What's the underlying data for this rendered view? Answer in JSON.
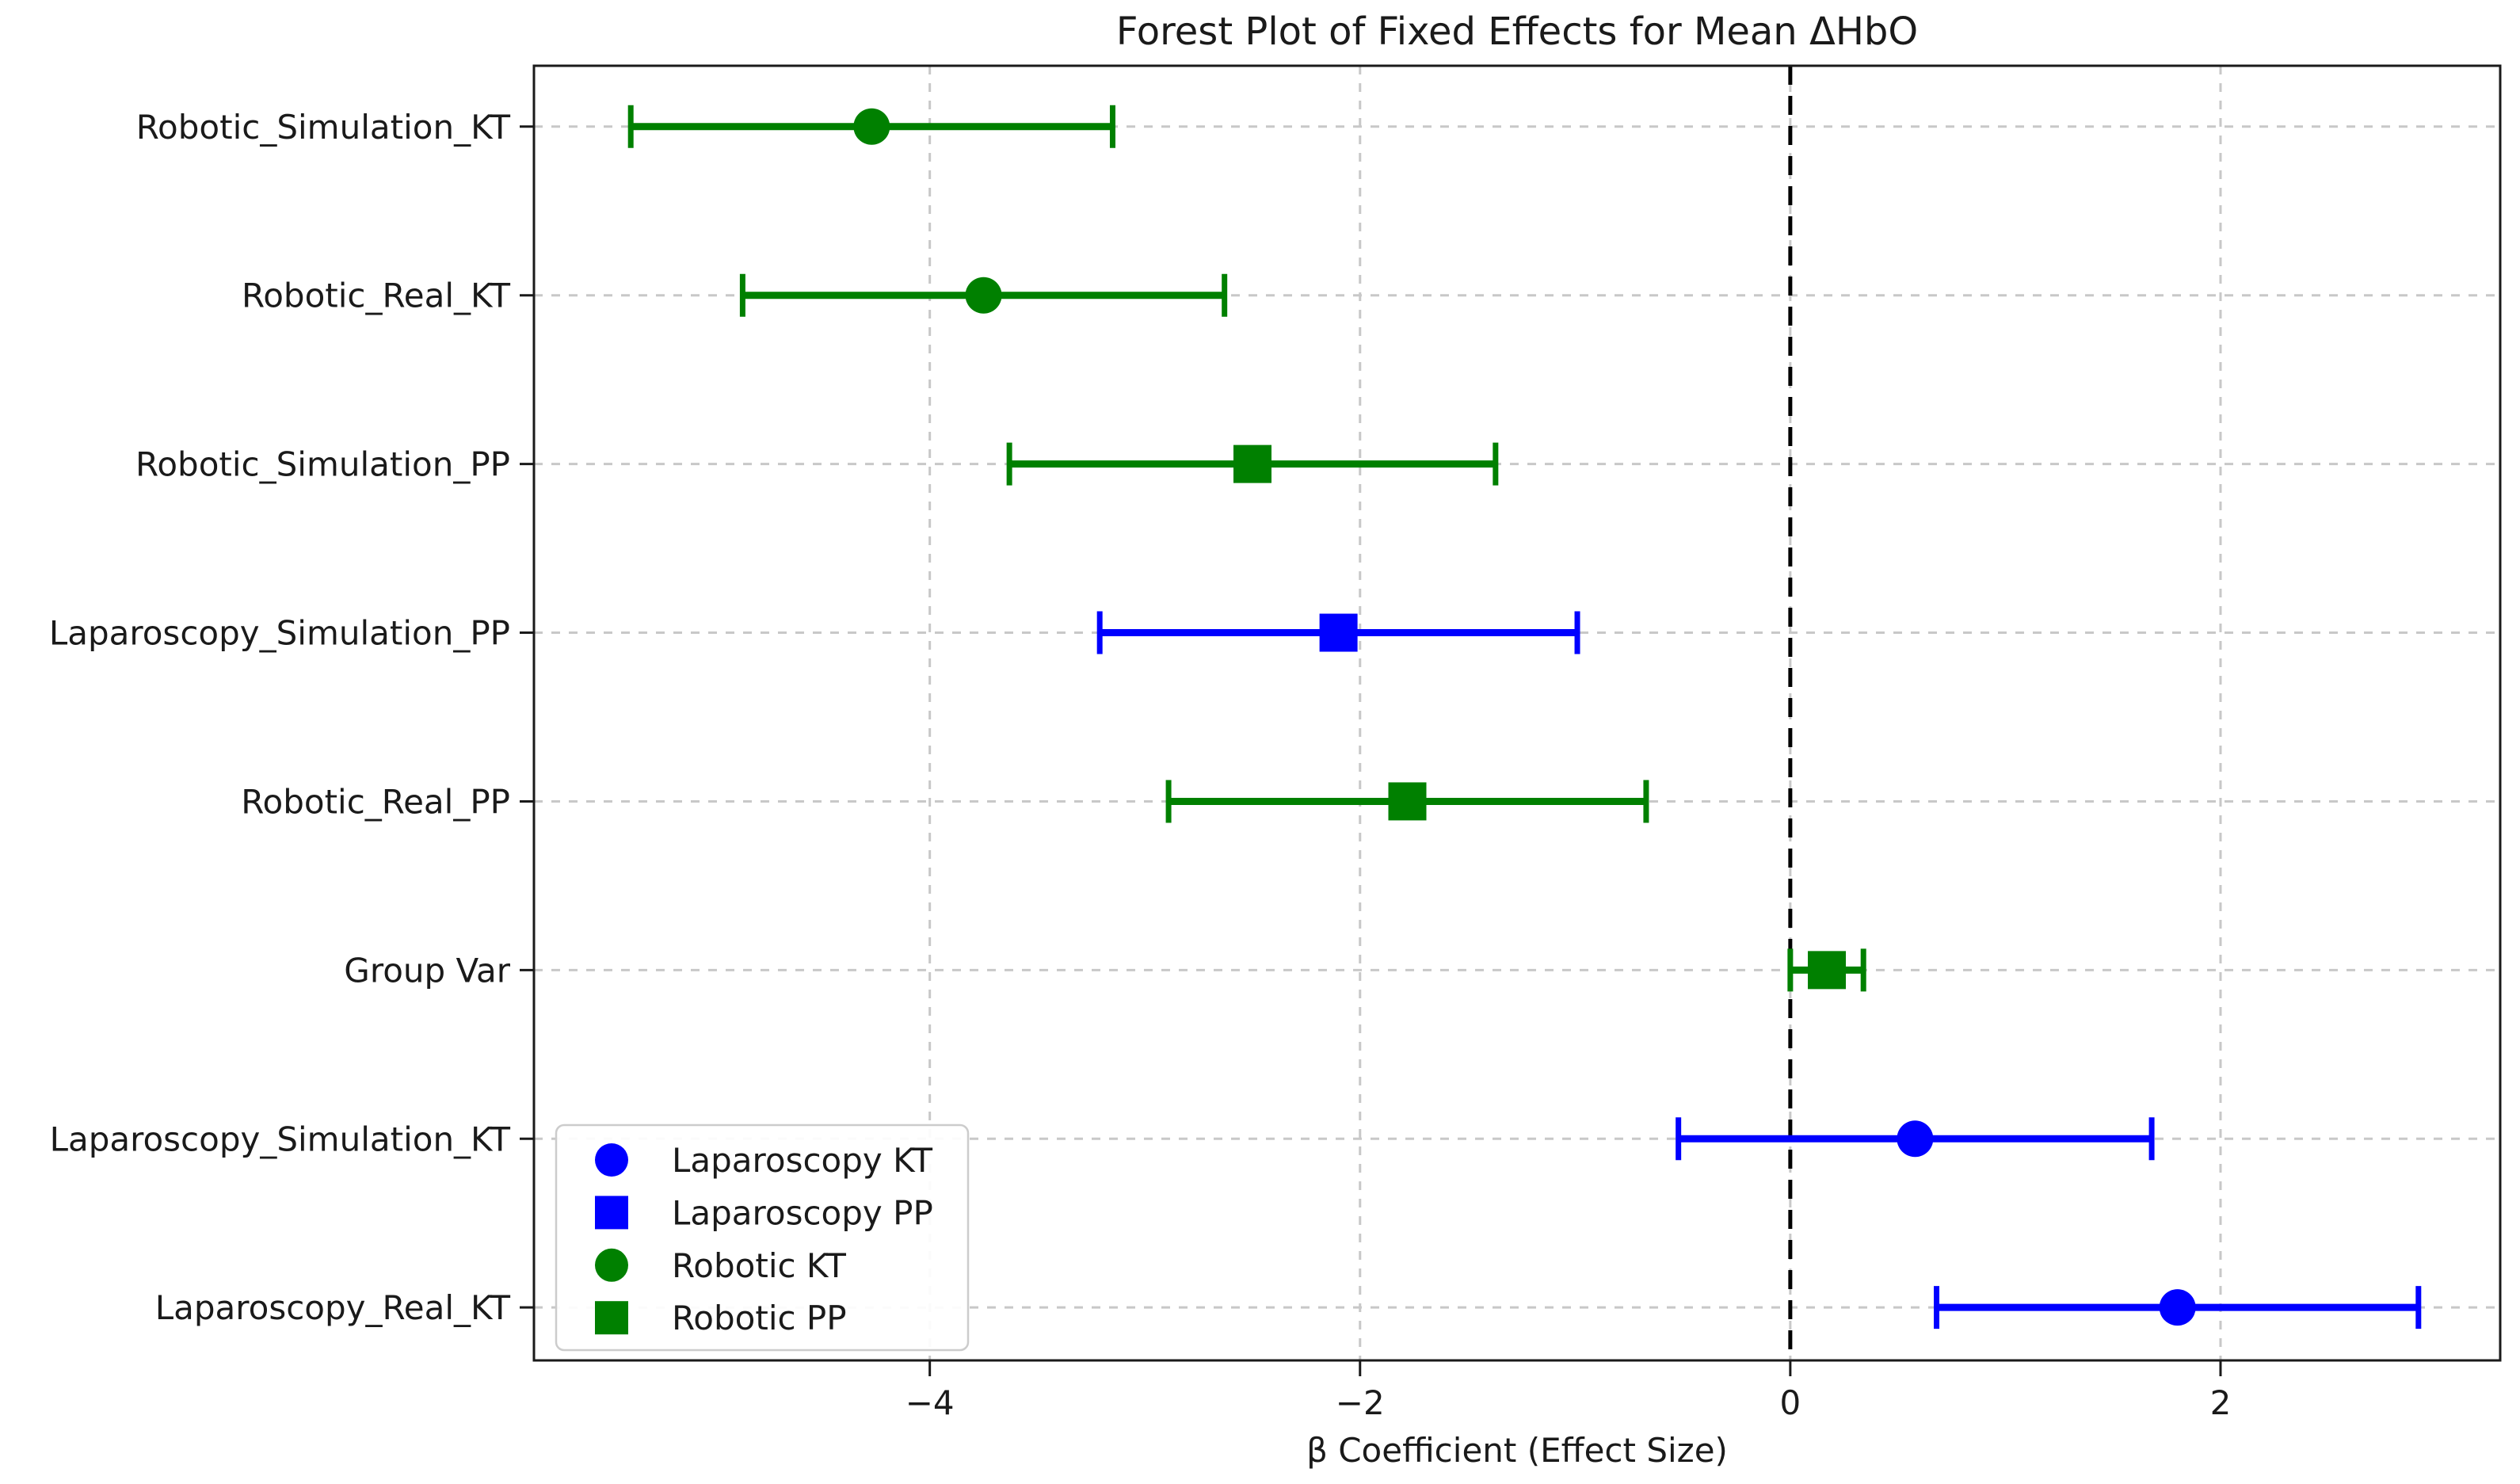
{
  "figure": {
    "title": "Forest Plot of Fixed Effects for Mean ΔHbO",
    "xlabel": "β Coefficient (Effect Size)"
  },
  "chart_data": {
    "type": "scatter",
    "subtype": "forest-plot-with-error-bars",
    "title": "Forest Plot of Fixed Effects for Mean ΔHbO",
    "xlabel": "β Coefficient (Effect Size)",
    "ylabel": "",
    "xlim": [
      -5.84,
      3.3
    ],
    "xticks": [
      -4,
      -2,
      0,
      2
    ],
    "xtick_labels": [
      "−4",
      "−2",
      "0",
      "2"
    ],
    "zero_reference_line": 0,
    "grid": {
      "enabled": true,
      "style": "dashed",
      "color": "#c8c8c8",
      "axes": "both"
    },
    "rows": [
      {
        "label": "Robotic_Simulation_KT",
        "series": "Robotic KT",
        "marker": "circle",
        "color": "#008000",
        "mean": -4.27,
        "ci_low": -5.39,
        "ci_high": -3.15
      },
      {
        "label": "Robotic_Real_KT",
        "series": "Robotic KT",
        "marker": "circle",
        "color": "#008000",
        "mean": -3.75,
        "ci_low": -4.87,
        "ci_high": -2.63
      },
      {
        "label": "Robotic_Simulation_PP",
        "series": "Robotic PP",
        "marker": "square",
        "color": "#008000",
        "mean": -2.5,
        "ci_low": -3.63,
        "ci_high": -1.37
      },
      {
        "label": "Laparoscopy_Simulation_PP",
        "series": "Laparoscopy PP",
        "marker": "square",
        "color": "#0000ff",
        "mean": -2.1,
        "ci_low": -3.21,
        "ci_high": -0.99
      },
      {
        "label": "Robotic_Real_PP",
        "series": "Robotic PP",
        "marker": "square",
        "color": "#008000",
        "mean": -1.78,
        "ci_low": -2.89,
        "ci_high": -0.67
      },
      {
        "label": "Group Var",
        "series": "Robotic PP",
        "marker": "square",
        "color": "#008000",
        "mean": 0.17,
        "ci_low": 0.0,
        "ci_high": 0.34
      },
      {
        "label": "Laparoscopy_Simulation_KT",
        "series": "Laparoscopy KT",
        "marker": "circle",
        "color": "#0000ff",
        "mean": 0.58,
        "ci_low": -0.52,
        "ci_high": 1.68
      },
      {
        "label": "Laparoscopy_Real_KT",
        "series": "Laparoscopy KT",
        "marker": "circle",
        "color": "#0000ff",
        "mean": 1.8,
        "ci_low": 0.68,
        "ci_high": 2.92
      }
    ],
    "legend": {
      "position": "lower left",
      "entries": [
        {
          "label": "Laparoscopy KT",
          "marker": "circle",
          "color": "#0000ff"
        },
        {
          "label": "Laparoscopy PP",
          "marker": "square",
          "color": "#0000ff"
        },
        {
          "label": "Robotic KT",
          "marker": "circle",
          "color": "#008000"
        },
        {
          "label": "Robotic PP",
          "marker": "square",
          "color": "#008000"
        }
      ]
    },
    "colors": {
      "laparoscopy": "#0000ff",
      "robotic": "#008000",
      "zero_line": "#000000",
      "grid": "#c8c8c8",
      "spine": "#1a1a1a"
    }
  }
}
